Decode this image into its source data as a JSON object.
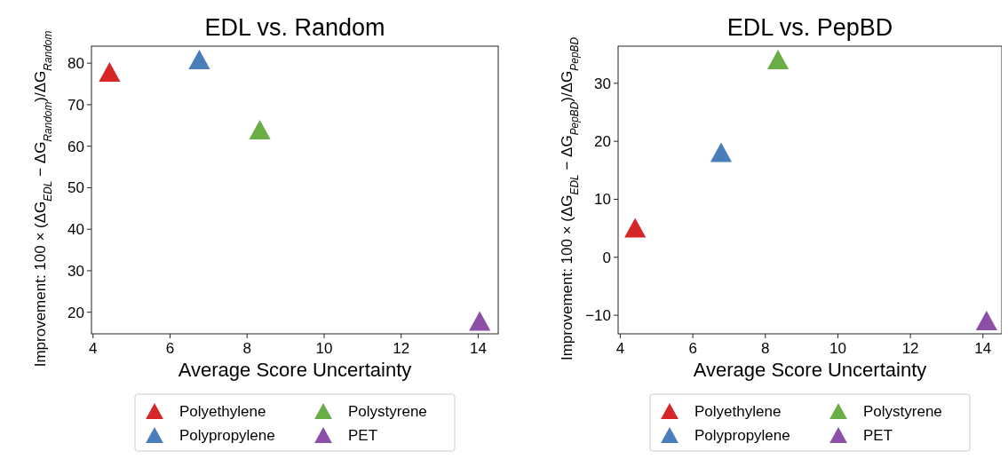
{
  "chart_data": [
    {
      "type": "scatter",
      "title": "EDL vs. Random",
      "xlabel": "Average Score Uncertainty",
      "ylabel": "Improvement: 100 × (ΔG$_{EDL}$ − ΔG$_{Random}$)/ΔG$_{Random}$",
      "xlim": [
        3.96,
        14.52
      ],
      "xticks": [
        4,
        6,
        8,
        10,
        12,
        14
      ],
      "ylim": [
        14.8,
        84.1
      ],
      "yticks": [
        20,
        30,
        40,
        50,
        60,
        70,
        80
      ],
      "marker": "triangle",
      "legend": "bottom",
      "grid": false,
      "series": [
        {
          "name": "Polyethylene",
          "color": "#d62728",
          "x": [
            4.43
          ],
          "values": [
            77.9
          ]
        },
        {
          "name": "Polypropylene",
          "color": "#4a7ebb",
          "x": [
            6.76
          ],
          "values": [
            80.9
          ]
        },
        {
          "name": "Polystyrene",
          "color": "#6aad46",
          "x": [
            8.33
          ],
          "values": [
            64.0
          ]
        },
        {
          "name": "PET",
          "color": "#8b4fa8",
          "x": [
            14.04
          ],
          "values": [
            17.9
          ]
        }
      ]
    },
    {
      "type": "scatter",
      "title": "EDL vs. PepBD",
      "xlabel": "Average Score Uncertainty",
      "ylabel": "Improvement: 100 × (ΔG$_{EDL}$ − ΔG$_{PepBD}$)/ΔG$_{PepBD}$",
      "xlim": [
        3.94,
        14.52
      ],
      "xticks": [
        4,
        6,
        8,
        10,
        12,
        14
      ],
      "ylim": [
        -13.2,
        36.4
      ],
      "yticks": [
        -10,
        0,
        10,
        20,
        30
      ],
      "marker": "triangle",
      "legend": "bottom",
      "grid": false,
      "series": [
        {
          "name": "Polyethylene",
          "color": "#d62728",
          "x": [
            4.41
          ],
          "values": [
            5.1
          ]
        },
        {
          "name": "Polypropylene",
          "color": "#4a7ebb",
          "x": [
            6.78
          ],
          "values": [
            18.1
          ]
        },
        {
          "name": "Polystyrene",
          "color": "#6aad46",
          "x": [
            8.35
          ],
          "values": [
            34.1
          ]
        },
        {
          "name": "PET",
          "color": "#8b4fa8",
          "x": [
            14.1
          ],
          "values": [
            -10.9
          ]
        }
      ]
    }
  ]
}
